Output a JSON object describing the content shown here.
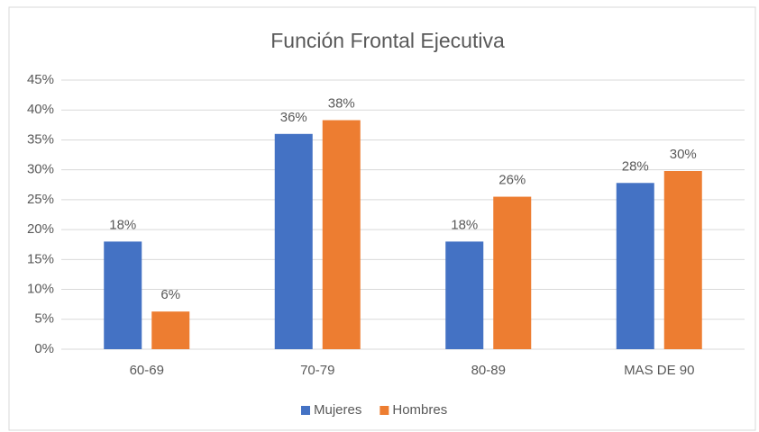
{
  "chart_data": {
    "type": "bar",
    "title": "Función Frontal Ejecutiva",
    "categories": [
      "60-69",
      "70-79",
      "80-89",
      "MAS DE 90"
    ],
    "series": [
      {
        "name": "Mujeres",
        "color": "#4472c4",
        "values": [
          18,
          36,
          18,
          27.8
        ],
        "value_labels": [
          "18%",
          "36%",
          "18%",
          "28%"
        ]
      },
      {
        "name": "Hombres",
        "color": "#ed7d31",
        "values": [
          6.3,
          38.3,
          25.5,
          29.8
        ],
        "value_labels": [
          "6%",
          "38%",
          "26%",
          "30%"
        ]
      }
    ],
    "ylim": [
      0,
      45
    ],
    "yticks": [
      {
        "value": 0,
        "label": "0%"
      },
      {
        "value": 5,
        "label": "5%"
      },
      {
        "value": 10,
        "label": "10%"
      },
      {
        "value": 15,
        "label": "15%"
      },
      {
        "value": 20,
        "label": "20%"
      },
      {
        "value": 25,
        "label": "25%"
      },
      {
        "value": 30,
        "label": "30%"
      },
      {
        "value": 35,
        "label": "35%"
      },
      {
        "value": 40,
        "label": "40%"
      },
      {
        "value": 45,
        "label": "45%"
      }
    ],
    "grid": true,
    "legend": "bottom"
  }
}
